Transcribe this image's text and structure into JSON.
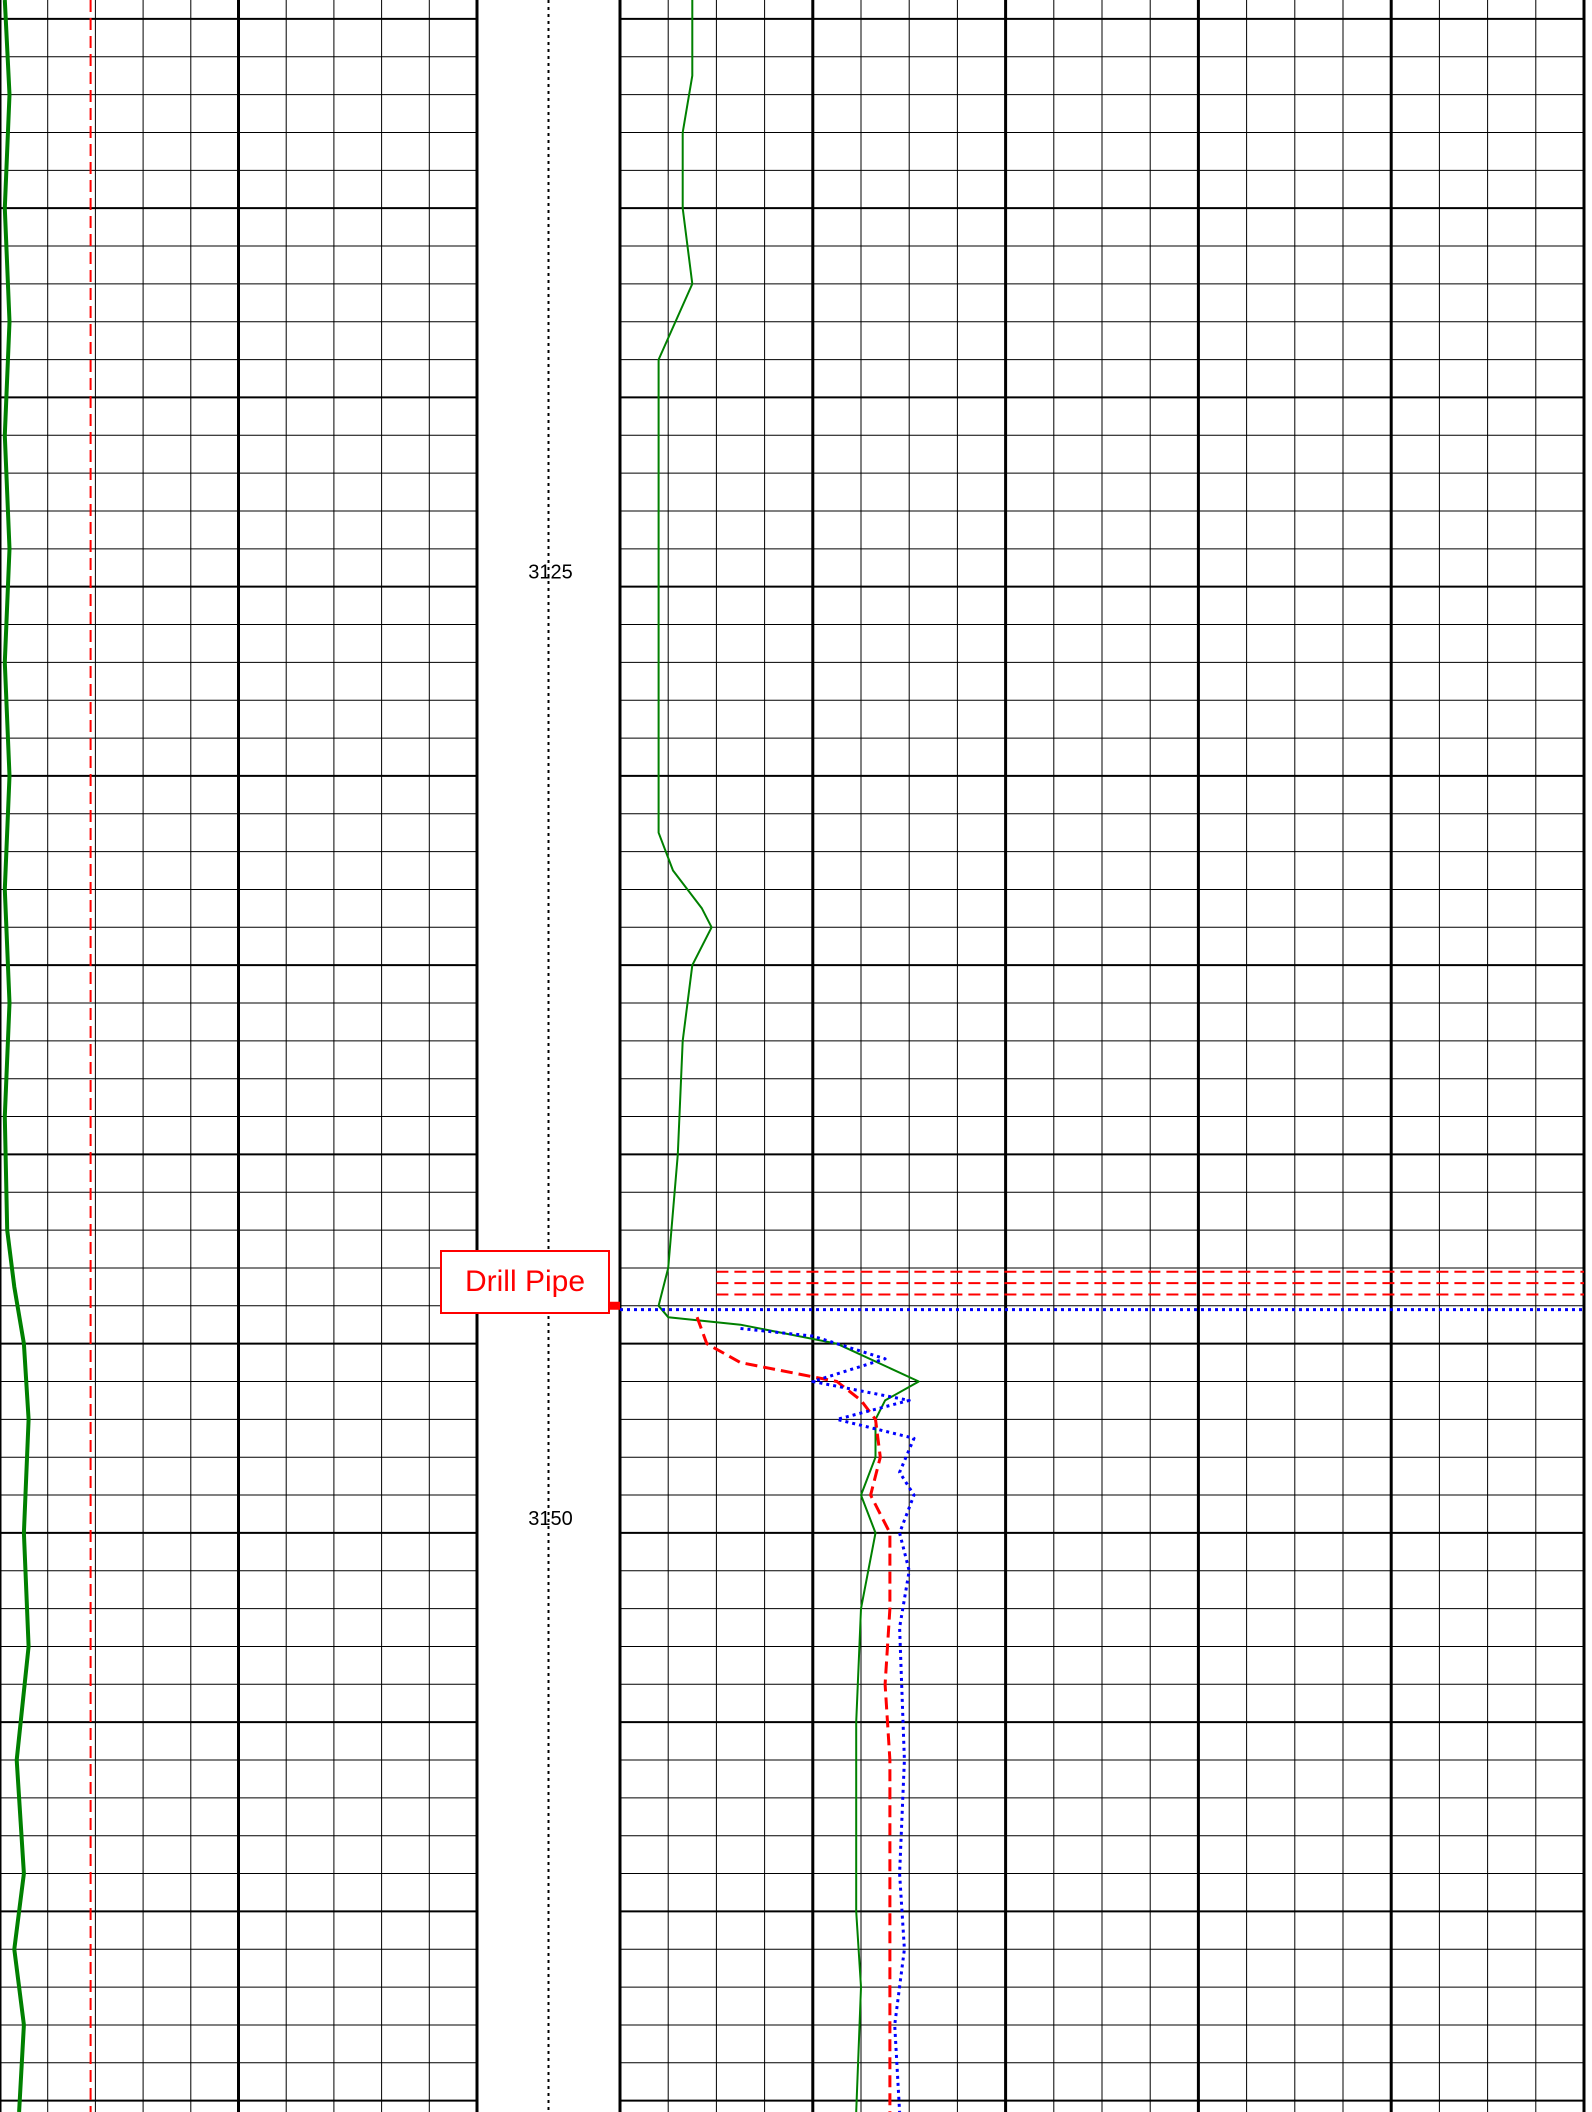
{
  "chart_data": {
    "type": "line",
    "title": "",
    "depth_range": [
      3109.5,
      3165.3
    ],
    "depth_labels": [
      {
        "depth": 3125,
        "text": "3125"
      },
      {
        "depth": 3150,
        "text": "3150"
      }
    ],
    "annotation": {
      "text": "Drill Pipe",
      "depth": 3144,
      "color": "#ff0000"
    },
    "tracks": [
      {
        "name": "track-1",
        "scale": [
          0,
          10
        ],
        "grid": {
          "major_every": 5,
          "minor_every": 1
        },
        "series": [
          {
            "style": "solid",
            "color": "#008000",
            "width": 4,
            "points": [
              [
                0.1,
                3109.5
              ],
              [
                0.2,
                3112
              ],
              [
                0.1,
                3115
              ],
              [
                0.2,
                3118
              ],
              [
                0.1,
                3121
              ],
              [
                0.2,
                3124
              ],
              [
                0.1,
                3127
              ],
              [
                0.2,
                3130
              ],
              [
                0.1,
                3133
              ],
              [
                0.2,
                3136
              ],
              [
                0.1,
                3139
              ],
              [
                0.15,
                3142
              ],
              [
                0.3,
                3143.5
              ],
              [
                0.5,
                3145
              ],
              [
                0.6,
                3147
              ],
              [
                0.5,
                3150
              ],
              [
                0.6,
                3153
              ],
              [
                0.35,
                3156
              ],
              [
                0.5,
                3159
              ],
              [
                0.3,
                3161
              ],
              [
                0.5,
                3163
              ],
              [
                0.4,
                3165.3
              ]
            ]
          },
          {
            "style": "dashed",
            "color": "#ff0000",
            "width": 2,
            "points": [
              [
                1.9,
                3109.5
              ],
              [
                1.9,
                3120
              ],
              [
                1.9,
                3130
              ],
              [
                1.9,
                3140
              ],
              [
                1.9,
                3150
              ],
              [
                1.9,
                3160
              ],
              [
                1.9,
                3165.3
              ]
            ]
          }
        ]
      },
      {
        "name": "depth-track",
        "series": [
          {
            "style": "dotted",
            "color": "#000000",
            "width": 2,
            "points": [
              [
                0.5,
                3109.5
              ],
              [
                0.5,
                3165.3
              ]
            ]
          }
        ]
      },
      {
        "name": "track-2",
        "scale": [
          0,
          20
        ],
        "grid": {
          "major_every": 4,
          "minor_every": 1
        },
        "series": [
          {
            "style": "solid",
            "color": "#008000",
            "width": 2,
            "points": [
              [
                1.5,
                3109.5
              ],
              [
                1.5,
                3111.5
              ],
              [
                1.3,
                3113
              ],
              [
                1.3,
                3115
              ],
              [
                1.5,
                3117
              ],
              [
                0.8,
                3119
              ],
              [
                0.8,
                3121
              ],
              [
                0.8,
                3125
              ],
              [
                0.8,
                3130
              ],
              [
                0.8,
                3131.5
              ],
              [
                1.1,
                3132.5
              ],
              [
                1.7,
                3133.5
              ],
              [
                1.9,
                3134
              ],
              [
                1.5,
                3135
              ],
              [
                1.3,
                3137
              ],
              [
                1.2,
                3140
              ],
              [
                1.0,
                3143
              ],
              [
                0.8,
                3144
              ],
              [
                1.0,
                3144.3
              ],
              [
                2.5,
                3144.5
              ],
              [
                4.5,
                3145
              ],
              [
                6.2,
                3146
              ],
              [
                5.5,
                3146.5
              ],
              [
                5.3,
                3147
              ],
              [
                5.3,
                3148
              ],
              [
                5.0,
                3149
              ],
              [
                5.3,
                3150
              ],
              [
                5.0,
                3152
              ],
              [
                4.9,
                3155
              ],
              [
                4.9,
                3160
              ],
              [
                5.0,
                3162
              ],
              [
                4.9,
                3165.3
              ]
            ]
          },
          {
            "style": "dashed",
            "color": "#ff0000",
            "width": 3,
            "points": [
              [
                1.6,
                3144.3
              ],
              [
                1.8,
                3145
              ],
              [
                2.5,
                3145.5
              ],
              [
                4.5,
                3146
              ],
              [
                5.0,
                3146.5
              ],
              [
                5.3,
                3147
              ],
              [
                5.4,
                3148
              ],
              [
                5.2,
                3149
              ],
              [
                5.6,
                3150
              ],
              [
                5.6,
                3152
              ],
              [
                5.5,
                3154
              ],
              [
                5.6,
                3156
              ],
              [
                5.6,
                3159
              ],
              [
                5.6,
                3162
              ],
              [
                5.6,
                3165.3
              ]
            ]
          },
          {
            "style": "dashed",
            "color": "#ff0000",
            "width": 2,
            "points": [
              [
                2.0,
                3143.1
              ],
              [
                20,
                3143.1
              ]
            ]
          },
          {
            "style": "dashed",
            "color": "#ff0000",
            "width": 2,
            "points": [
              [
                2.0,
                3143.4
              ],
              [
                20,
                3143.4
              ]
            ]
          },
          {
            "style": "dashed",
            "color": "#ff0000",
            "width": 2,
            "points": [
              [
                2.0,
                3143.7
              ],
              [
                20,
                3143.7
              ]
            ]
          },
          {
            "style": "dotted",
            "color": "#0000ff",
            "width": 3,
            "points": [
              [
                0,
                3144.1
              ],
              [
                20,
                3144.1
              ]
            ]
          },
          {
            "style": "dotted",
            "color": "#0000ff",
            "width": 3,
            "points": [
              [
                2.5,
                3144.6
              ],
              [
                4.0,
                3144.8
              ],
              [
                5.5,
                3145.4
              ],
              [
                4.0,
                3146
              ],
              [
                6.0,
                3146.5
              ],
              [
                4.5,
                3147
              ],
              [
                6.1,
                3147.5
              ],
              [
                5.8,
                3148.4
              ],
              [
                6.1,
                3149
              ],
              [
                5.8,
                3150
              ],
              [
                6.0,
                3151
              ],
              [
                5.8,
                3152.5
              ],
              [
                5.9,
                3156
              ],
              [
                5.8,
                3159
              ],
              [
                5.9,
                3161
              ],
              [
                5.7,
                3163
              ],
              [
                5.8,
                3165.3
              ]
            ]
          }
        ]
      }
    ]
  }
}
